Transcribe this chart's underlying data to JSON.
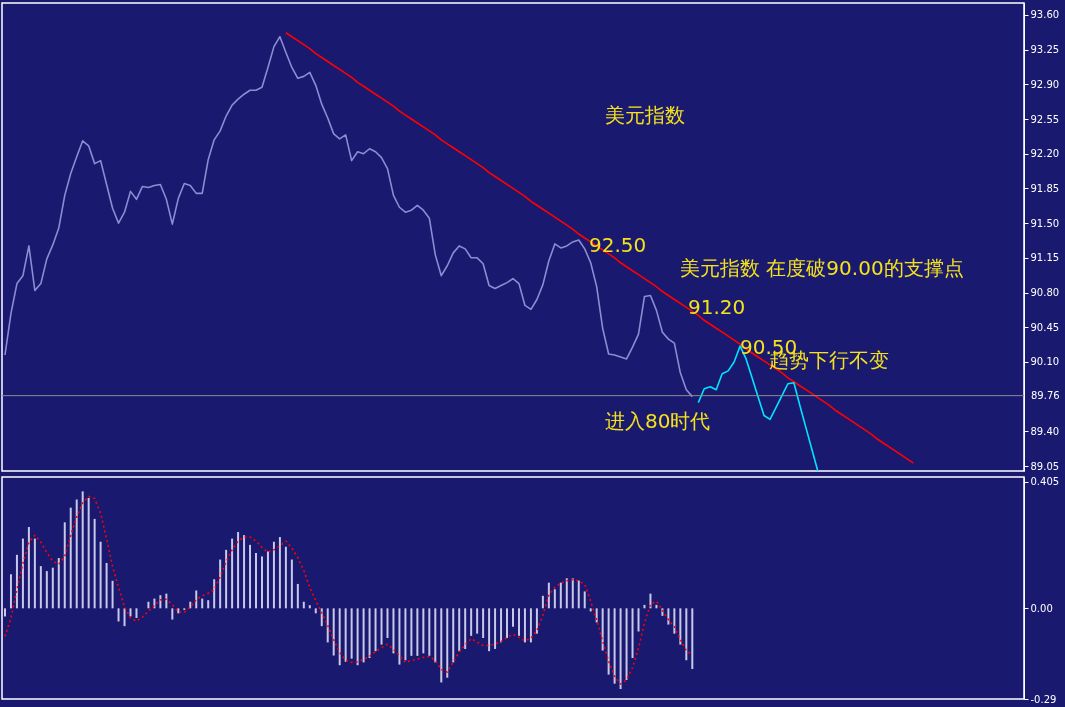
{
  "chart_data": [
    {
      "type": "line",
      "ylim": [
        89.0,
        93.72
      ],
      "tick_labels": "y",
      "categories": [
        null,
        null,
        null,
        null,
        null,
        null,
        null,
        null,
        null,
        null,
        null,
        null,
        null,
        null,
        null,
        null,
        null,
        null,
        null,
        null,
        null,
        null,
        null,
        null,
        null,
        null,
        null,
        null,
        null,
        null,
        null,
        null,
        null,
        null,
        null,
        null,
        null,
        null,
        null,
        null,
        null,
        null,
        null,
        null,
        null,
        null,
        null,
        null,
        null,
        null,
        null,
        null,
        null,
        null,
        null,
        null,
        null,
        null,
        null,
        null,
        null,
        null,
        null,
        null,
        null,
        null,
        null,
        null,
        null,
        null,
        null,
        null,
        null,
        null,
        null,
        null,
        null,
        null,
        null,
        null,
        null,
        null,
        null,
        null,
        null,
        null,
        null,
        null,
        null,
        null,
        null,
        null,
        null,
        null,
        null,
        null,
        null,
        null,
        null,
        null,
        null,
        null,
        null,
        null,
        null,
        null,
        null,
        null,
        null,
        null,
        null,
        null,
        null,
        null,
        null,
        null,
        null,
        null,
        null,
        null,
        null,
        null,
        null,
        null,
        null,
        null,
        null,
        null,
        null,
        null,
        null,
        null,
        null,
        null,
        null,
        null,
        null,
        null,
        null,
        null,
        null,
        null,
        null,
        null,
        null,
        null,
        null,
        null,
        null,
        null,
        null,
        null,
        null,
        null,
        null,
        null,
        null,
        null,
        null,
        null,
        null,
        null,
        null,
        null,
        null,
        null,
        null,
        null,
        null,
        null,
        null
      ],
      "yticks": [
        {
          "value": 93.6,
          "label": "93.60"
        },
        {
          "value": 93.25,
          "label": "93.25"
        },
        {
          "value": 92.9,
          "label": "92.90"
        },
        {
          "value": 92.55,
          "label": "92.55"
        },
        {
          "value": 92.2,
          "label": "92.20"
        },
        {
          "value": 91.85,
          "label": "91.85"
        },
        {
          "value": 91.5,
          "label": "91.50"
        },
        {
          "value": 91.15,
          "label": "91.15"
        },
        {
          "value": 90.8,
          "label": "90.80"
        },
        {
          "value": 90.45,
          "label": "90.45"
        },
        {
          "value": 90.1,
          "label": "90.10"
        },
        {
          "value": 89.4,
          "label": "89.40"
        },
        {
          "value": 89.05,
          "label": "89.05"
        }
      ],
      "series": [
        {
          "color": "#8c8cd2",
          "values": [
            90.17,
            90.59,
            90.89,
            90.97,
            91.27,
            90.82,
            90.89,
            91.14,
            91.28,
            91.45,
            91.78,
            92.0,
            92.17,
            92.33,
            92.28,
            92.1,
            92.13,
            91.89,
            91.65,
            91.5,
            91.61,
            91.82,
            91.74,
            91.87,
            91.86,
            91.88,
            91.89,
            91.74,
            91.49,
            91.75,
            91.9,
            91.88,
            91.8,
            91.8,
            92.14,
            92.34,
            92.43,
            92.58,
            92.69,
            92.75,
            92.8,
            92.84,
            92.84,
            92.87,
            93.07,
            93.28,
            93.38,
            93.22,
            93.07,
            92.96,
            92.98,
            93.02,
            92.89,
            92.7,
            92.56,
            92.4,
            92.35,
            92.39,
            92.13,
            92.22,
            92.2,
            92.25,
            92.22,
            92.16,
            92.05,
            91.78,
            91.66,
            91.61,
            91.63,
            91.68,
            91.63,
            91.55,
            91.18,
            90.97,
            91.07,
            91.2,
            91.27,
            91.24,
            91.15,
            91.15,
            91.09,
            90.87,
            90.84,
            90.87,
            90.9,
            90.94,
            90.89,
            90.67,
            90.63,
            90.73,
            90.88,
            91.12,
            91.29,
            91.25,
            91.27,
            91.31,
            91.33,
            91.24,
            91.1,
            90.86,
            90.44,
            90.18,
            90.17,
            90.15,
            90.13,
            90.25,
            90.38,
            90.76,
            90.77,
            90.62,
            90.4,
            90.33,
            90.29,
            89.99,
            89.82,
            89.75,
            null,
            null,
            null,
            null,
            null,
            null,
            null,
            null,
            null,
            null,
            null,
            null,
            null,
            null,
            null,
            null,
            null,
            null,
            null,
            null,
            null,
            null,
            null,
            null,
            null,
            null,
            null,
            null,
            null,
            null,
            null,
            null,
            null,
            null,
            null,
            null,
            null,
            null,
            null,
            null,
            null,
            null,
            null,
            null,
            null,
            null,
            null,
            null,
            null,
            null,
            null,
            null,
            null,
            null,
            null
          ]
        },
        {
          "color": "#ff0000",
          "values": [
            null,
            null,
            null,
            null,
            null,
            null,
            null,
            null,
            null,
            null,
            null,
            null,
            null,
            null,
            null,
            null,
            null,
            null,
            null,
            null,
            null,
            null,
            null,
            null,
            null,
            null,
            null,
            null,
            null,
            null,
            null,
            null,
            null,
            null,
            null,
            null,
            null,
            null,
            null,
            null,
            null,
            null,
            null,
            null,
            null,
            null,
            null,
            93.42,
            93.38,
            93.34,
            93.3,
            93.26,
            93.21,
            93.17,
            93.13,
            93.09,
            93.05,
            93.01,
            92.97,
            92.92,
            92.88,
            92.84,
            92.8,
            92.76,
            92.72,
            92.68,
            92.63,
            92.59,
            92.55,
            92.51,
            92.47,
            92.43,
            92.39,
            92.34,
            92.3,
            92.26,
            92.22,
            92.18,
            92.14,
            92.1,
            92.06,
            92.01,
            91.97,
            91.93,
            91.89,
            91.85,
            91.81,
            91.77,
            91.72,
            91.68,
            91.64,
            91.6,
            91.56,
            91.52,
            91.48,
            91.44,
            91.39,
            91.35,
            91.31,
            91.27,
            91.23,
            91.19,
            91.15,
            91.1,
            91.06,
            91.02,
            90.98,
            90.94,
            90.9,
            90.86,
            90.81,
            90.77,
            90.73,
            90.69,
            90.65,
            90.61,
            90.57,
            90.52,
            90.48,
            90.44,
            90.4,
            90.36,
            90.32,
            90.28,
            90.23,
            90.19,
            90.15,
            90.11,
            90.07,
            90.03,
            89.99,
            89.94,
            89.9,
            89.86,
            89.82,
            89.78,
            89.74,
            89.7,
            89.66,
            89.61,
            89.57,
            89.53,
            89.49,
            89.45,
            89.41,
            89.37,
            89.32,
            89.28,
            89.24,
            89.2,
            89.16,
            89.12,
            89.08,
            null,
            null,
            null,
            null,
            null,
            null,
            null,
            null,
            null,
            null,
            null,
            null,
            null,
            null,
            null,
            null,
            null,
            null
          ]
        },
        {
          "color": "#00e5ff",
          "values": [
            null,
            null,
            null,
            null,
            null,
            null,
            null,
            null,
            null,
            null,
            null,
            null,
            null,
            null,
            null,
            null,
            null,
            null,
            null,
            null,
            null,
            null,
            null,
            null,
            null,
            null,
            null,
            null,
            null,
            null,
            null,
            null,
            null,
            null,
            null,
            null,
            null,
            null,
            null,
            null,
            null,
            null,
            null,
            null,
            null,
            null,
            null,
            null,
            null,
            null,
            null,
            null,
            null,
            null,
            null,
            null,
            null,
            null,
            null,
            null,
            null,
            null,
            null,
            null,
            null,
            null,
            null,
            null,
            null,
            null,
            null,
            null,
            null,
            null,
            null,
            null,
            null,
            null,
            null,
            null,
            null,
            null,
            null,
            null,
            null,
            null,
            null,
            null,
            null,
            null,
            null,
            null,
            null,
            null,
            null,
            null,
            null,
            null,
            null,
            null,
            null,
            null,
            null,
            null,
            null,
            null,
            null,
            null,
            null,
            null,
            null,
            null,
            null,
            null,
            null,
            null,
            89.69,
            89.83,
            89.85,
            89.82,
            89.98,
            90.01,
            90.1,
            90.26,
            90.13,
            89.94,
            89.75,
            89.56,
            89.52,
            89.64,
            89.76,
            89.88,
            89.89,
            89.66,
            89.44,
            89.22,
            89.0,
            null,
            null,
            null,
            null,
            null,
            null,
            null,
            null,
            null,
            null,
            null,
            null,
            null,
            null,
            null,
            null,
            null,
            null,
            null,
            null,
            null,
            null,
            null,
            null,
            null,
            null,
            null,
            null,
            null,
            null,
            null,
            null,
            null,
            null
          ]
        }
      ],
      "ref_lines": [
        {
          "axis": "y",
          "value": 89.76,
          "label": "89.76",
          "color": "#8c8c8c"
        }
      ],
      "annotations": [
        "美元指数",
        "美元指数 在度破90.00的支撑点",
        "趋势下行不变",
        "进入80时代",
        "92.50",
        "91.20",
        "90.50"
      ]
    },
    {
      "type": "bar",
      "ylim": [
        -0.29,
        0.42
      ],
      "tick_labels": "y",
      "categories": [
        null,
        null,
        null,
        null,
        null,
        null,
        null,
        null,
        null,
        null,
        null,
        null,
        null,
        null,
        null,
        null,
        null,
        null,
        null,
        null,
        null,
        null,
        null,
        null,
        null,
        null,
        null,
        null,
        null,
        null,
        null,
        null,
        null,
        null,
        null,
        null,
        null,
        null,
        null,
        null,
        null,
        null,
        null,
        null,
        null,
        null,
        null,
        null,
        null,
        null,
        null,
        null,
        null,
        null,
        null,
        null,
        null,
        null,
        null,
        null,
        null,
        null,
        null,
        null,
        null,
        null,
        null,
        null,
        null,
        null,
        null,
        null,
        null,
        null,
        null,
        null,
        null,
        null,
        null,
        null,
        null,
        null,
        null,
        null,
        null,
        null,
        null,
        null,
        null,
        null,
        null,
        null,
        null,
        null,
        null,
        null,
        null,
        null,
        null,
        null,
        null,
        null,
        null,
        null,
        null,
        null,
        null,
        null,
        null,
        null,
        null,
        null,
        null,
        null,
        null,
        null,
        null,
        null,
        null,
        null,
        null,
        null,
        null,
        null,
        null,
        null,
        null,
        null,
        null,
        null,
        null,
        null,
        null,
        null,
        null,
        null,
        null,
        null,
        null,
        null,
        null,
        null,
        null,
        null,
        null,
        null,
        null,
        null,
        null,
        null,
        null,
        null,
        null,
        null,
        null,
        null,
        null,
        null,
        null,
        null,
        null,
        null,
        null,
        null,
        null,
        null,
        null,
        null,
        null,
        null,
        null
      ],
      "yticks": [
        0.405,
        {
          "value": 0,
          "label": "0.00"
        },
        -0.29
      ],
      "series": [
        {
          "color": "#c8c8e8",
          "values": [
            -0.026,
            0.109,
            0.171,
            0.223,
            0.26,
            0.223,
            0.135,
            0.119,
            0.13,
            0.161,
            0.275,
            0.322,
            0.348,
            0.374,
            0.353,
            0.286,
            0.213,
            0.145,
            0.088,
            -0.042,
            -0.057,
            -0.026,
            -0.031,
            0,
            0.021,
            0.031,
            0.042,
            0.047,
            -0.036,
            -0.016,
            -0.005,
            0.021,
            0.057,
            0.031,
            0.026,
            0.093,
            0.156,
            0.187,
            0.223,
            0.244,
            0.234,
            0.203,
            0.177,
            0.166,
            0.182,
            0.213,
            0.228,
            0.197,
            0.156,
            0.078,
            0.021,
            0.01,
            -0.016,
            -0.057,
            -0.109,
            -0.151,
            -0.182,
            -0.171,
            -0.161,
            -0.182,
            -0.173,
            -0.159,
            -0.137,
            -0.116,
            -0.095,
            -0.144,
            -0.18,
            -0.166,
            -0.152,
            -0.152,
            -0.144,
            -0.152,
            -0.173,
            -0.237,
            -0.222,
            -0.173,
            -0.137,
            -0.13,
            -0.088,
            -0.081,
            -0.095,
            -0.137,
            -0.13,
            -0.109,
            -0.095,
            -0.059,
            -0.088,
            -0.109,
            -0.109,
            -0.081,
            0.04,
            0.082,
            0.061,
            0.082,
            0.096,
            0.096,
            0.089,
            0.054,
            -0.01,
            -0.045,
            -0.135,
            -0.212,
            -0.241,
            -0.258,
            -0.229,
            -0.159,
            -0.074,
            0.011,
            0.047,
            0.011,
            -0.024,
            -0.052,
            -0.081,
            -0.116,
            -0.166,
            -0.194,
            null,
            null,
            null,
            null,
            null,
            null,
            null,
            null,
            null,
            null,
            null,
            null,
            null,
            null,
            null,
            null,
            null,
            null,
            null,
            null,
            null,
            null,
            null,
            null,
            null,
            null,
            null,
            null,
            null,
            null,
            null,
            null,
            null,
            null,
            null,
            null,
            null,
            null,
            null,
            null,
            null,
            null,
            null,
            null,
            null,
            null,
            null,
            null,
            null,
            null,
            null,
            null,
            null,
            null,
            null
          ]
        },
        {
          "type": "line",
          "line_style": "dotted",
          "color": "#ff0000",
          "values": [
            -0.09,
            -0.031,
            0.061,
            0.143,
            0.212,
            0.234,
            0.212,
            0.178,
            0.151,
            0.141,
            0.167,
            0.233,
            0.293,
            0.337,
            0.358,
            0.351,
            0.304,
            0.223,
            0.134,
            0.067,
            0.005,
            -0.031,
            -0.041,
            -0.028,
            -0.009,
            0.009,
            0.027,
            0.029,
            0.012,
            -0.012,
            -0.012,
            0.004,
            0.028,
            0.04,
            0.048,
            0.059,
            0.101,
            0.148,
            0.187,
            0.215,
            0.228,
            0.228,
            0.215,
            0.195,
            0.179,
            0.187,
            0.2,
            0.215,
            0.193,
            0.162,
            0.121,
            0.066,
            0.025,
            -0.015,
            -0.055,
            -0.101,
            -0.141,
            -0.166,
            -0.173,
            -0.171,
            -0.163,
            -0.154,
            -0.138,
            -0.126,
            -0.115,
            -0.131,
            -0.151,
            -0.173,
            -0.167,
            -0.162,
            -0.157,
            -0.154,
            -0.167,
            -0.196,
            -0.204,
            -0.171,
            -0.14,
            -0.116,
            -0.097,
            -0.108,
            -0.119,
            -0.119,
            -0.114,
            -0.107,
            -0.093,
            -0.083,
            -0.093,
            -0.104,
            -0.096,
            -0.071,
            -0.022,
            0.044,
            0.067,
            0.081,
            0.088,
            0.092,
            0.088,
            0.076,
            0.023,
            -0.037,
            -0.105,
            -0.169,
            -0.217,
            -0.242,
            -0.229,
            -0.19,
            -0.127,
            -0.046,
            0.012,
            0.023,
            -0.007,
            -0.036,
            -0.059,
            -0.1,
            -0.135,
            -0.15,
            null,
            null,
            null,
            null,
            null,
            null,
            null,
            null,
            null,
            null,
            null,
            null,
            null,
            null,
            null,
            null,
            null,
            null,
            null,
            null,
            null,
            null,
            null,
            null,
            null,
            null,
            null,
            null,
            null,
            null,
            null,
            null,
            null,
            null,
            null,
            null,
            null,
            null,
            null,
            null,
            null,
            null,
            null,
            null,
            null,
            null,
            null,
            null,
            null,
            null,
            null,
            null,
            null,
            null,
            null
          ]
        }
      ]
    }
  ]
}
